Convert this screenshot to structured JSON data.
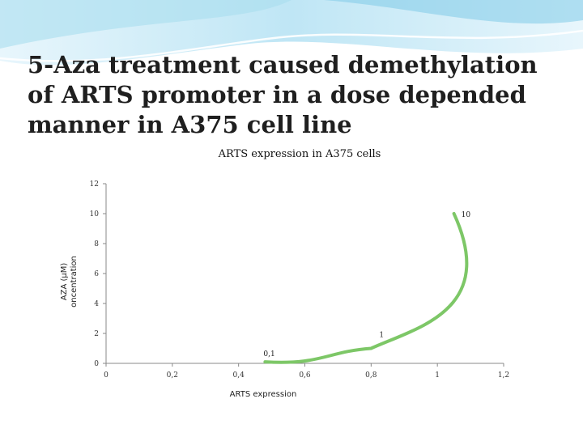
{
  "slide": {
    "title": "5-Aza treatment caused demethylation of ARTS promoter in a dose depended manner in A375 cell line",
    "colors": {
      "banner_light": "#e3f4fb",
      "banner_mid": "#8fd3ec",
      "banner_dark": "#2aa3d6",
      "series": "#7dc767"
    }
  },
  "chart_data": {
    "type": "scatter",
    "title": "ARTS expression in A375 cells",
    "xlabel": "ARTS expression",
    "ylabel_lines": [
      "AZA (μM)",
      "oncentration"
    ],
    "xlim": [
      0,
      1.2
    ],
    "ylim": [
      0,
      12
    ],
    "x_ticks": [
      0,
      0.2,
      0.4,
      0.6,
      0.8,
      1,
      1.2
    ],
    "x_tick_labels": [
      "0",
      "0,2",
      "0,4",
      "0,6",
      "0,8",
      "1",
      "1,2"
    ],
    "y_ticks": [
      0,
      2,
      4,
      6,
      8,
      10,
      12
    ],
    "y_tick_labels": [
      "0",
      "2",
      "4",
      "6",
      "8",
      "10",
      "12"
    ],
    "grid": false,
    "legend": "none",
    "smooth_line": true,
    "series": [
      {
        "x": [
          0.48,
          0.8,
          1.05
        ],
        "y": [
          0.1,
          1,
          10
        ],
        "data_labels": [
          "0,1",
          "1",
          "10"
        ]
      }
    ]
  }
}
